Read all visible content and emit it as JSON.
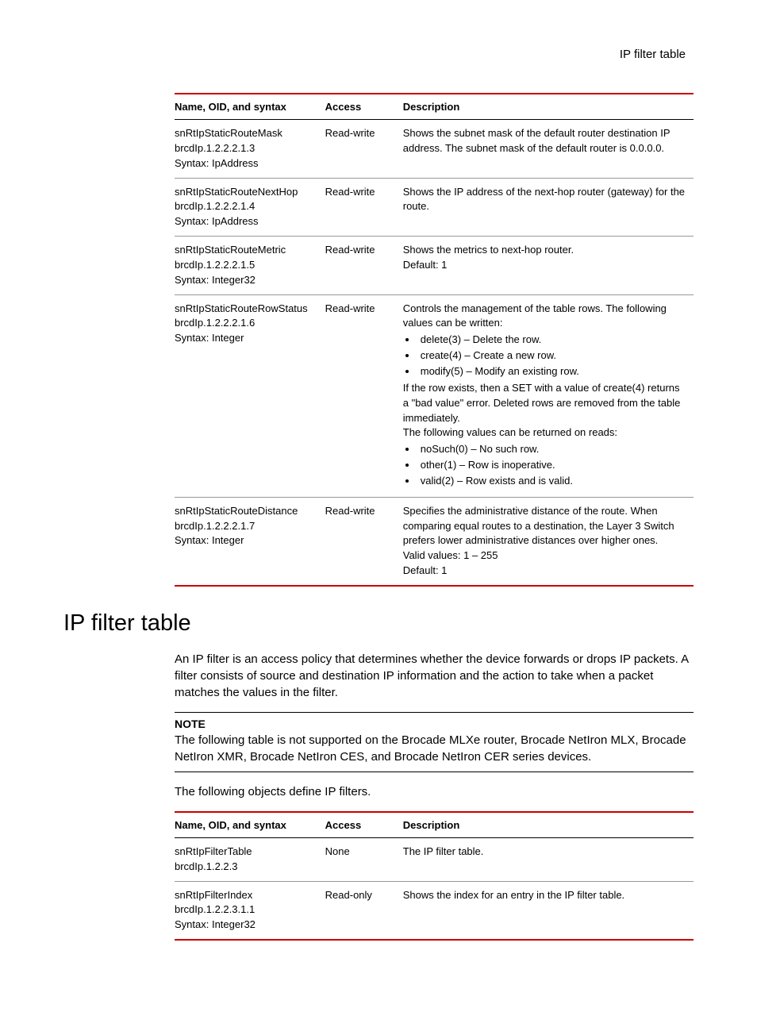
{
  "header": {
    "right": "IP filter table"
  },
  "table1": {
    "headers": {
      "name": "Name, OID, and syntax",
      "access": "Access",
      "desc": "Description"
    },
    "rows": [
      {
        "name_l1": "snRtIpStaticRouteMask",
        "name_l2": "brcdIp.1.2.2.2.1.3",
        "name_l3": "Syntax: IpAddress",
        "access": "Read-write",
        "desc_p1": "Shows the subnet mask of the default router destination IP address. The subnet mask of the default router is 0.0.0.0."
      },
      {
        "name_l1": "snRtIpStaticRouteNextHop",
        "name_l2": "brcdIp.1.2.2.2.1.4",
        "name_l3": "Syntax: IpAddress",
        "access": "Read-write",
        "desc_p1": "Shows the IP address of the next-hop router (gateway) for the route."
      },
      {
        "name_l1": "snRtIpStaticRouteMetric",
        "name_l2": "brcdIp.1.2.2.2.1.5",
        "name_l3": "Syntax: Integer32",
        "access": "Read-write",
        "desc_p1": "Shows the metrics to next-hop router.",
        "desc_p2": "Default: 1"
      },
      {
        "name_l1": "snRtIpStaticRouteRowStatus",
        "name_l2": "brcdIp.1.2.2.2.1.6",
        "name_l3": "Syntax: Integer",
        "access": "Read-write",
        "desc_p1": "Controls the management of the table rows. The following values can be written:",
        "bullets1": {
          "b1": "delete(3) – Delete the row.",
          "b2": "create(4) – Create a new row.",
          "b3": "modify(5) – Modify an existing row."
        },
        "desc_p2": "If the row exists, then a SET with a value of create(4) returns a \"bad value\" error. Deleted rows are removed from the table immediately.",
        "desc_p3": "The following values can be returned on reads:",
        "bullets2": {
          "b1": "noSuch(0) – No such row.",
          "b2": "other(1) – Row is inoperative.",
          "b3": "valid(2) – Row exists and is valid."
        }
      },
      {
        "name_l1": "snRtIpStaticRouteDistance",
        "name_l2": "brcdIp.1.2.2.2.1.7",
        "name_l3": "Syntax: Integer",
        "access": "Read-write",
        "desc_p1": "Specifies the administrative distance of the route. When comparing equal routes to a destination, the Layer 3 Switch prefers lower administrative distances over higher ones.",
        "desc_p2": "Valid values: 1 – 255",
        "desc_p3": "Default: 1"
      }
    ]
  },
  "section": {
    "heading": "IP filter table",
    "intro": "An IP filter is an access policy that determines whether the device forwards or drops IP packets. A filter consists of source and destination IP information and the action to take when a packet matches the values in the filter.",
    "note_label": "NOTE",
    "note_text": "The following table is not supported on the Brocade MLXe router, Brocade NetIron MLX, Brocade NetIron XMR, Brocade NetIron CES, and Brocade NetIron CER series devices.",
    "lead": "The following objects define IP filters."
  },
  "table2": {
    "headers": {
      "name": "Name, OID, and syntax",
      "access": "Access",
      "desc": "Description"
    },
    "rows": [
      {
        "name_l1": "snRtIpFilterTable",
        "name_l2": "brcdIp.1.2.2.3",
        "access": "None",
        "desc_p1": "The IP filter table."
      },
      {
        "name_l1": "snRtIpFilterIndex",
        "name_l2": "brcdIp.1.2.2.3.1.1",
        "name_l3": "Syntax: Integer32",
        "access": "Read-only",
        "desc_p1": "Shows the index for an entry in the IP filter table."
      }
    ]
  }
}
